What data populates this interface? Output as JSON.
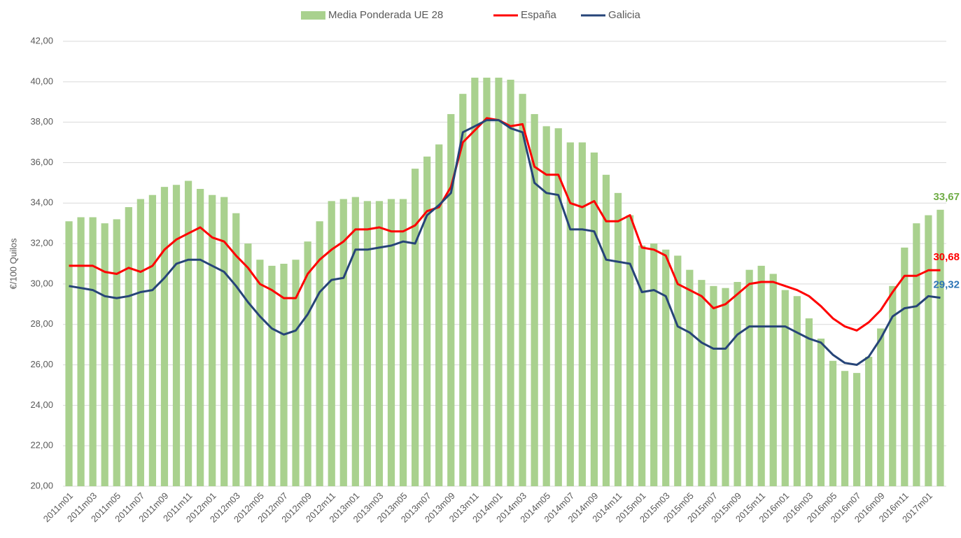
{
  "chart_data": {
    "type": "bar_line",
    "ylabel": "€/100 Quilos",
    "categories": [
      "2011m01",
      null,
      "2011m03",
      null,
      "2011m05",
      null,
      "2011m07",
      null,
      "2011m09",
      null,
      "2011m11",
      null,
      "2012m01",
      null,
      "2012m03",
      null,
      "2012m05",
      null,
      "2012m07",
      null,
      "2012m09",
      null,
      "2012m11",
      null,
      "2013m01",
      null,
      "2013m03",
      null,
      "2013m05",
      null,
      "2013m07",
      null,
      "2013m09",
      null,
      "2013m11",
      null,
      "2014m01",
      null,
      "2014m03",
      null,
      "2014m05",
      null,
      "2014m07",
      null,
      "2014m09",
      null,
      "2014m11",
      null,
      "2015m01",
      null,
      "2015m03",
      null,
      "2015m05",
      null,
      "2015m07",
      null,
      "2015m09",
      null,
      "2015m11",
      null,
      "2016m01",
      null,
      "2016m03",
      null,
      "2016m05",
      null,
      "2016m07",
      null,
      "2016m09",
      null,
      "2016m11",
      null,
      "2017m01",
      null
    ],
    "series": [
      {
        "name": "Media Ponderada UE 28",
        "kind": "bar",
        "color": "#a9d18e",
        "label_color": "#70ad47",
        "values": [
          33.1,
          33.3,
          33.3,
          33.0,
          33.2,
          33.8,
          34.2,
          34.4,
          34.8,
          34.9,
          35.1,
          34.7,
          34.4,
          34.3,
          33.5,
          32.0,
          31.2,
          30.9,
          31.0,
          31.2,
          32.1,
          33.1,
          34.1,
          34.2,
          34.3,
          34.1,
          34.1,
          34.2,
          34.2,
          35.7,
          36.3,
          36.9,
          38.4,
          39.4,
          40.2,
          40.2,
          40.2,
          40.1,
          39.4,
          38.4,
          37.8,
          37.7,
          37.0,
          37.0,
          36.5,
          35.4,
          34.5,
          33.4,
          31.9,
          32.0,
          31.7,
          31.4,
          30.7,
          30.2,
          29.9,
          29.8,
          30.1,
          30.7,
          30.9,
          30.5,
          29.7,
          29.4,
          28.3,
          27.3,
          26.2,
          25.7,
          25.6,
          26.4,
          27.8,
          29.9,
          31.8,
          33.0,
          33.4,
          33.67
        ],
        "value_labels": [
          null,
          null,
          null,
          null,
          null,
          null,
          null,
          null,
          null,
          null,
          null,
          null,
          null,
          null,
          null,
          null,
          null,
          null,
          null,
          null,
          null,
          null,
          null,
          null,
          null,
          null,
          null,
          null,
          null,
          null,
          null,
          null,
          null,
          null,
          null,
          null,
          null,
          null,
          null,
          null,
          null,
          null,
          null,
          null,
          null,
          null,
          null,
          null,
          null,
          null,
          null,
          null,
          null,
          null,
          null,
          null,
          null,
          null,
          null,
          null,
          null,
          null,
          null,
          null,
          null,
          null,
          null,
          null,
          null,
          null,
          null,
          null,
          null,
          "33,67"
        ]
      },
      {
        "name": "España",
        "kind": "line",
        "color": "#ff0000",
        "label_color": "#ff0000",
        "values": [
          30.9,
          30.9,
          30.9,
          30.6,
          30.5,
          30.8,
          30.6,
          30.9,
          31.7,
          32.2,
          32.5,
          32.8,
          32.3,
          32.1,
          31.4,
          30.8,
          30.0,
          29.7,
          29.3,
          29.3,
          30.5,
          31.2,
          31.7,
          32.1,
          32.7,
          32.7,
          32.8,
          32.6,
          32.6,
          32.9,
          33.6,
          33.8,
          34.8,
          37.0,
          37.6,
          38.2,
          38.1,
          37.8,
          37.9,
          35.8,
          35.4,
          35.4,
          34.0,
          33.8,
          34.1,
          33.1,
          33.1,
          33.4,
          31.8,
          31.7,
          31.4,
          30.0,
          29.7,
          29.4,
          28.8,
          29.0,
          29.5,
          30.0,
          30.1,
          30.1,
          29.9,
          29.7,
          29.4,
          28.9,
          28.3,
          27.9,
          27.7,
          28.1,
          28.7,
          29.6,
          30.4,
          30.4,
          30.68,
          30.68
        ],
        "value_labels": [
          null,
          null,
          null,
          null,
          null,
          null,
          null,
          null,
          null,
          null,
          null,
          null,
          null,
          null,
          null,
          null,
          null,
          null,
          null,
          null,
          null,
          null,
          null,
          null,
          null,
          null,
          null,
          null,
          null,
          null,
          null,
          null,
          null,
          null,
          null,
          null,
          null,
          null,
          null,
          null,
          null,
          null,
          null,
          null,
          null,
          null,
          null,
          null,
          null,
          null,
          null,
          null,
          null,
          null,
          null,
          null,
          null,
          null,
          null,
          null,
          null,
          null,
          null,
          null,
          null,
          null,
          null,
          null,
          null,
          null,
          null,
          null,
          null,
          "30,68"
        ]
      },
      {
        "name": "Galicia",
        "kind": "line",
        "color": "#264478",
        "label_color": "#2e75b6",
        "values": [
          29.9,
          29.8,
          29.7,
          29.4,
          29.3,
          29.4,
          29.6,
          29.7,
          30.3,
          31.0,
          31.2,
          31.2,
          30.9,
          30.6,
          29.9,
          29.1,
          28.4,
          27.8,
          27.5,
          27.7,
          28.5,
          29.6,
          30.2,
          30.3,
          31.7,
          31.7,
          31.8,
          31.9,
          32.1,
          32.0,
          33.4,
          33.9,
          34.5,
          37.5,
          37.8,
          38.1,
          38.1,
          37.7,
          37.5,
          35.0,
          34.5,
          34.4,
          32.7,
          32.7,
          32.6,
          31.2,
          31.1,
          31.0,
          29.6,
          29.7,
          29.4,
          27.9,
          27.6,
          27.1,
          26.8,
          26.8,
          27.5,
          27.9,
          27.9,
          27.9,
          27.9,
          27.6,
          27.3,
          27.1,
          26.5,
          26.1,
          26.0,
          26.4,
          27.3,
          28.4,
          28.8,
          28.9,
          29.4,
          29.32
        ],
        "value_labels": [
          null,
          null,
          null,
          null,
          null,
          null,
          null,
          null,
          null,
          null,
          null,
          null,
          null,
          null,
          null,
          null,
          null,
          null,
          null,
          null,
          null,
          null,
          null,
          null,
          null,
          null,
          null,
          null,
          null,
          null,
          null,
          null,
          null,
          null,
          null,
          null,
          null,
          null,
          null,
          null,
          null,
          null,
          null,
          null,
          null,
          null,
          null,
          null,
          null,
          null,
          null,
          null,
          null,
          null,
          null,
          null,
          null,
          null,
          null,
          null,
          null,
          null,
          null,
          null,
          null,
          null,
          null,
          null,
          null,
          null,
          null,
          null,
          null,
          "29,32"
        ]
      }
    ],
    "ylim": [
      20,
      42
    ],
    "yticks": [
      {
        "value": 20,
        "label": "20,00"
      },
      {
        "value": 22,
        "label": "22,00"
      },
      {
        "value": 24,
        "label": "24,00"
      },
      {
        "value": 26,
        "label": "26,00"
      },
      {
        "value": 28,
        "label": "28,00"
      },
      {
        "value": 30,
        "label": "30,00"
      },
      {
        "value": 32,
        "label": "32,00"
      },
      {
        "value": 34,
        "label": "34,00"
      },
      {
        "value": 36,
        "label": "36,00"
      },
      {
        "value": 38,
        "label": "38,00"
      },
      {
        "value": 40,
        "label": "40,00"
      },
      {
        "value": 42,
        "label": "42,00"
      }
    ],
    "grid": true,
    "legend": "top"
  }
}
